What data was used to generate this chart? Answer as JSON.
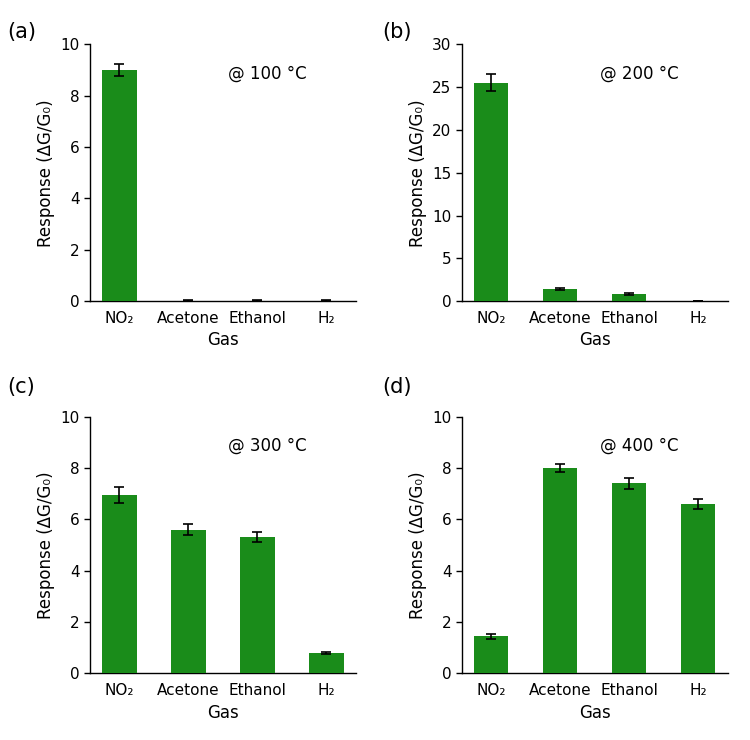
{
  "subplots": [
    {
      "label": "(a)",
      "temp": "@ 100 °C",
      "gases": [
        "NO₂",
        "Acetone",
        "Ethanol",
        "H₂"
      ],
      "values": [
        9.0,
        0.02,
        0.02,
        0.02
      ],
      "errors": [
        0.25,
        0.01,
        0.01,
        0.01
      ],
      "ylim": [
        0,
        10
      ],
      "yticks": [
        0,
        2,
        4,
        6,
        8,
        10
      ]
    },
    {
      "label": "(b)",
      "temp": "@ 200 °C",
      "gases": [
        "NO₂",
        "Acetone",
        "Ethanol",
        "H₂"
      ],
      "values": [
        25.5,
        1.4,
        0.85,
        0.05
      ],
      "errors": [
        1.0,
        0.12,
        0.08,
        0.02
      ],
      "ylim": [
        0,
        30
      ],
      "yticks": [
        0,
        5,
        10,
        15,
        20,
        25,
        30
      ]
    },
    {
      "label": "(c)",
      "temp": "@ 300 °C",
      "gases": [
        "NO₂",
        "Acetone",
        "Ethanol",
        "H₂"
      ],
      "values": [
        6.95,
        5.6,
        5.3,
        0.8
      ],
      "errors": [
        0.3,
        0.2,
        0.2,
        0.05
      ],
      "ylim": [
        0,
        10
      ],
      "yticks": [
        0,
        2,
        4,
        6,
        8,
        10
      ]
    },
    {
      "label": "(d)",
      "temp": "@ 400 °C",
      "gases": [
        "NO₂",
        "Acetone",
        "Ethanol",
        "H₂"
      ],
      "values": [
        1.45,
        8.0,
        7.4,
        6.6
      ],
      "errors": [
        0.1,
        0.15,
        0.2,
        0.2
      ],
      "ylim": [
        0,
        10
      ],
      "yticks": [
        0,
        2,
        4,
        6,
        8,
        10
      ]
    }
  ],
  "bar_color": "#1a8c1a",
  "bar_width": 0.5,
  "xlabel": "Gas",
  "ylabel": "Response (ΔG/G₀)",
  "background_color": "#ffffff",
  "tick_label_fontsize": 11,
  "axis_label_fontsize": 12,
  "annotation_fontsize": 12,
  "panel_label_fontsize": 15
}
